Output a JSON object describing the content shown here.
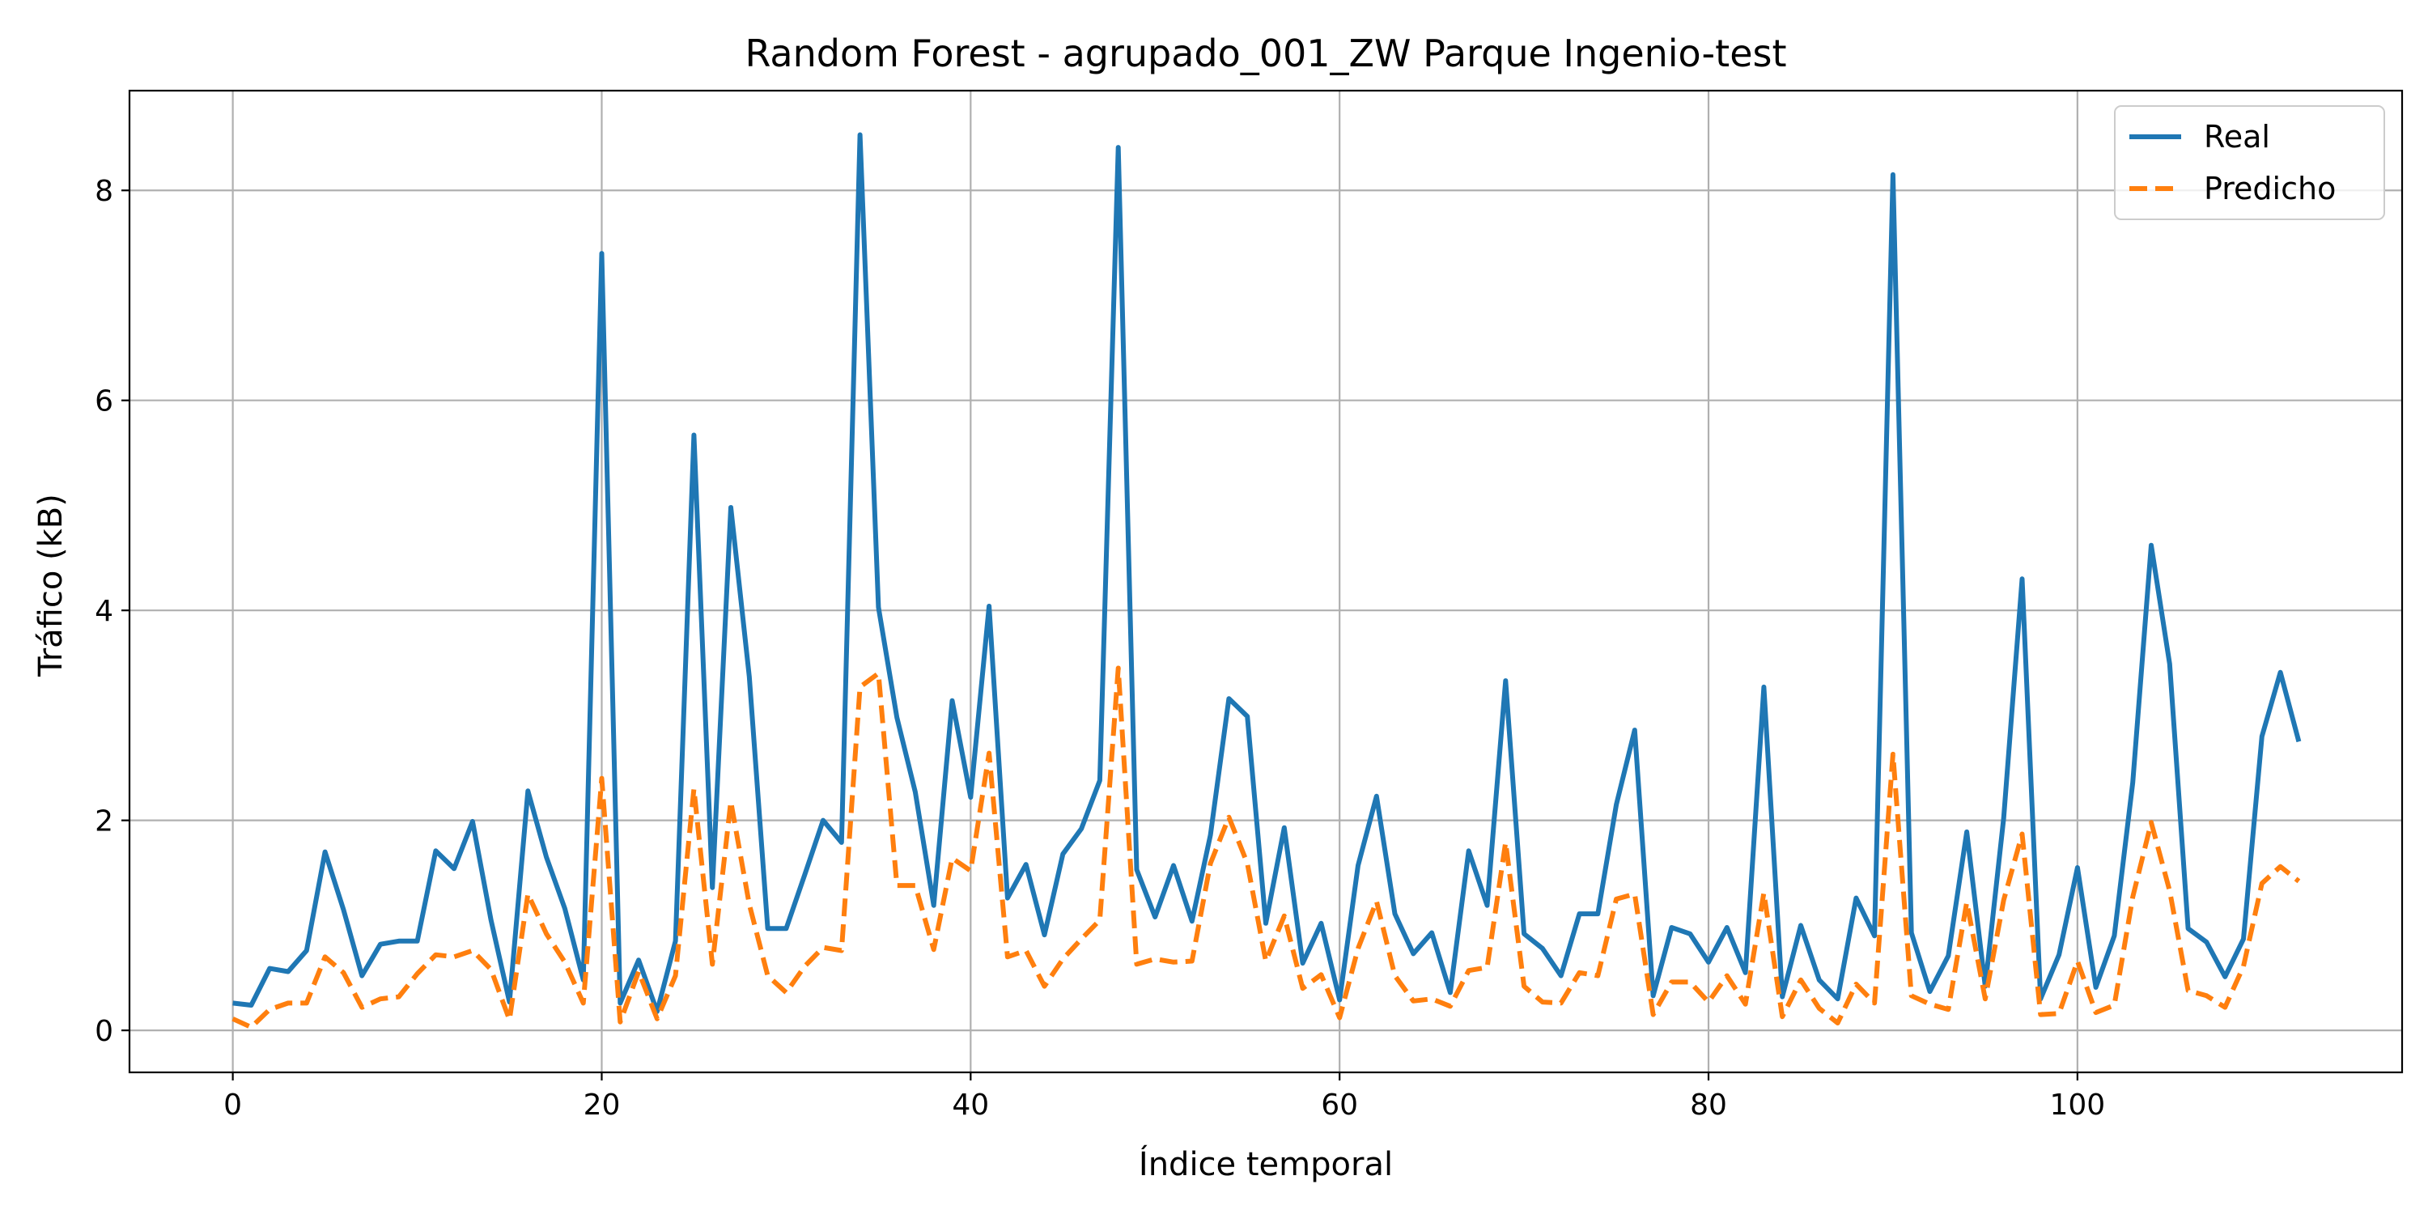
{
  "chart_data": {
    "type": "line",
    "title": "Random Forest - agrupado_001_ZW Parque Ingenio-test",
    "xlabel": "Índice temporal",
    "ylabel": "Tráfico (kB)",
    "xlim": [
      -5.6,
      117.6
    ],
    "ylim": [
      -0.4,
      8.95
    ],
    "xticks": [
      0,
      20,
      40,
      60,
      80,
      100
    ],
    "yticks": [
      0,
      2,
      4,
      6,
      8
    ],
    "grid": true,
    "legend_position": "top-right",
    "x_start": 0,
    "series": [
      {
        "name": "Real",
        "color": "#1f77b4",
        "style": "solid",
        "values": [
          0.26,
          0.24,
          0.59,
          0.56,
          0.76,
          1.7,
          1.15,
          0.52,
          0.82,
          0.85,
          0.85,
          1.71,
          1.54,
          1.99,
          1.05,
          0.27,
          2.28,
          1.65,
          1.16,
          0.48,
          7.4,
          0.26,
          0.67,
          0.18,
          0.85,
          5.67,
          1.36,
          4.98,
          3.37,
          0.97,
          0.97,
          1.48,
          2.0,
          1.79,
          8.53,
          4.03,
          2.98,
          2.27,
          1.19,
          3.14,
          2.22,
          4.04,
          1.26,
          1.58,
          0.91,
          1.68,
          1.92,
          2.38,
          8.41,
          1.53,
          1.08,
          1.57,
          1.04,
          1.86,
          3.16,
          2.99,
          1.02,
          1.93,
          0.64,
          1.02,
          0.29,
          1.57,
          2.23,
          1.11,
          0.73,
          0.93,
          0.36,
          1.71,
          1.19,
          3.33,
          0.92,
          0.78,
          0.52,
          1.11,
          1.11,
          2.15,
          2.86,
          0.33,
          0.98,
          0.92,
          0.65,
          0.98,
          0.55,
          3.27,
          0.32,
          1.0,
          0.48,
          0.3,
          1.26,
          0.9,
          8.15,
          0.93,
          0.37,
          0.71,
          1.89,
          0.42,
          2.02,
          4.3,
          0.3,
          0.72,
          1.55,
          0.41,
          0.9,
          2.36,
          4.62,
          3.49,
          0.97,
          0.84,
          0.51,
          0.87,
          2.8,
          3.41,
          2.75
        ]
      },
      {
        "name": "Predicho",
        "color": "#ff7f0e",
        "style": "dashed",
        "values": [
          0.11,
          0.03,
          0.2,
          0.26,
          0.26,
          0.7,
          0.55,
          0.22,
          0.3,
          0.32,
          0.54,
          0.72,
          0.7,
          0.76,
          0.58,
          0.1,
          1.3,
          0.92,
          0.65,
          0.26,
          2.4,
          0.08,
          0.56,
          0.11,
          0.52,
          2.3,
          0.63,
          2.18,
          1.2,
          0.52,
          0.36,
          0.61,
          0.79,
          0.76,
          3.27,
          3.4,
          1.38,
          1.38,
          0.77,
          1.64,
          1.52,
          2.64,
          0.7,
          0.76,
          0.42,
          0.68,
          0.87,
          1.05,
          3.45,
          0.63,
          0.68,
          0.65,
          0.66,
          1.59,
          2.03,
          1.59,
          0.66,
          1.09,
          0.4,
          0.53,
          0.12,
          0.78,
          1.23,
          0.52,
          0.28,
          0.3,
          0.23,
          0.57,
          0.6,
          1.79,
          0.42,
          0.27,
          0.26,
          0.55,
          0.52,
          1.25,
          1.3,
          0.15,
          0.46,
          0.46,
          0.27,
          0.52,
          0.25,
          1.31,
          0.13,
          0.48,
          0.21,
          0.07,
          0.44,
          0.26,
          2.63,
          0.33,
          0.25,
          0.2,
          1.22,
          0.3,
          1.24,
          1.87,
          0.15,
          0.16,
          0.66,
          0.17,
          0.24,
          1.27,
          1.98,
          1.33,
          0.38,
          0.33,
          0.22,
          0.61,
          1.4,
          1.56,
          1.42
        ]
      }
    ]
  }
}
